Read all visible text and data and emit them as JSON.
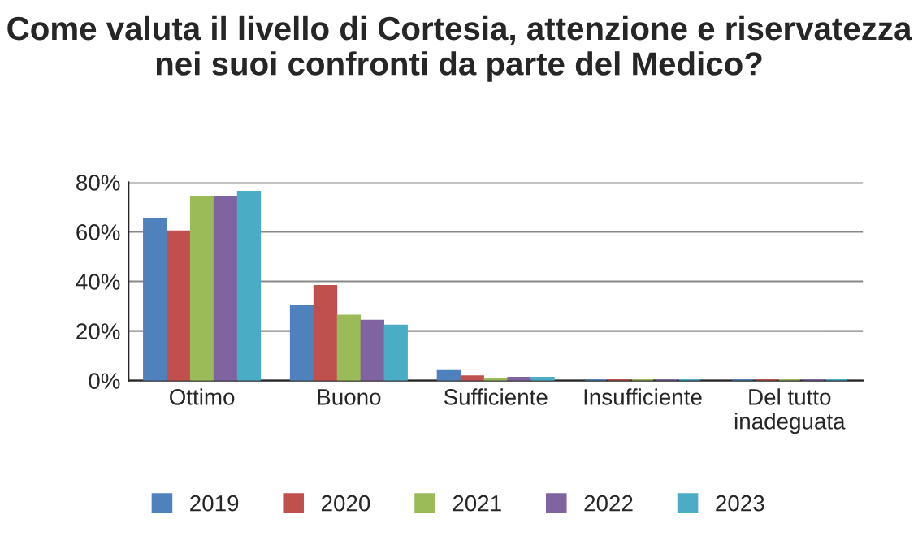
{
  "chart_data": {
    "type": "bar",
    "title": "Come valuta il livello di Cortesia, attenzione e riservatezza nei suoi confronti da parte del Medico?",
    "categories": [
      "Ottimo",
      "Buono",
      "Sufficiente",
      "Insufficiente",
      "Del tutto\ninadeguata"
    ],
    "series": [
      {
        "name": "2019",
        "color": "#4f81bd",
        "values": [
          65,
          30,
          4,
          0,
          0
        ]
      },
      {
        "name": "2020",
        "color": "#c0504d",
        "values": [
          60,
          38,
          1.5,
          0,
          0
        ]
      },
      {
        "name": "2021",
        "color": "#9bbb59",
        "values": [
          74,
          26,
          0.5,
          0,
          0
        ]
      },
      {
        "name": "2022",
        "color": "#8064a2",
        "values": [
          74,
          24,
          1,
          0,
          0
        ]
      },
      {
        "name": "2023",
        "color": "#4bacc6",
        "values": [
          76,
          22,
          1,
          0,
          0
        ]
      }
    ],
    "ylim": [
      0,
      80
    ],
    "yticks": [
      {
        "value": 0,
        "label": "0%"
      },
      {
        "value": 20,
        "label": "20%"
      },
      {
        "value": 40,
        "label": "40%"
      },
      {
        "value": 60,
        "label": "60%"
      },
      {
        "value": 80,
        "label": "80%"
      }
    ],
    "grid": "y",
    "legend": "bottom"
  }
}
